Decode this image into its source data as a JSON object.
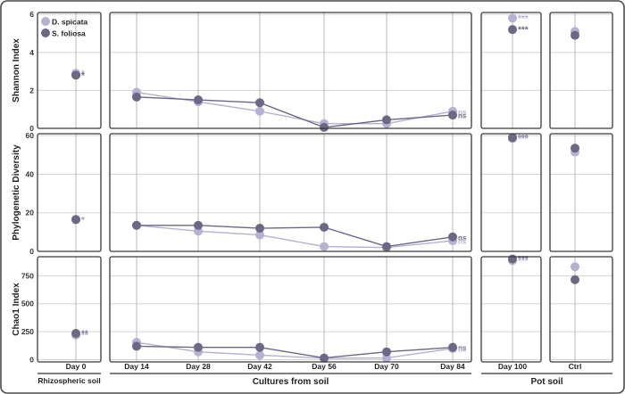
{
  "chart_data": {
    "type": "line",
    "legend": {
      "placement": "top-left",
      "entries": [
        "D. spicata",
        "S. foliosa"
      ]
    },
    "colors": {
      "D. spicata": "#b6b0d2",
      "S. foliosa": "#6e6685",
      "frame": "#3a3a3a",
      "grid": "#d3d3d3",
      "vline": "#b9b9b9"
    },
    "series": [
      {
        "name": "D. spicata"
      },
      {
        "name": "S. foliosa"
      }
    ],
    "groups": [
      {
        "name": "Rhizospheric soil",
        "categories": [
          "Day 0"
        ]
      },
      {
        "name": "Cultures from soil",
        "categories": [
          "Day 14",
          "Day 28",
          "Day 42",
          "Day 56",
          "Day 70",
          "Day 84"
        ]
      },
      {
        "name": "Pot soil",
        "categories": [
          "Day 100",
          "Ctrl"
        ]
      }
    ],
    "rows": [
      {
        "ylabel": "Shannon Index",
        "ylim": [
          0,
          6.1
        ],
        "yticks": [
          0,
          2,
          4,
          6
        ],
        "panels": [
          {
            "values": {
              "D. spicata": [
                2.9
              ],
              "S. foliosa": [
                2.8
              ]
            },
            "annotations": [
              {
                "text": "*",
                "series": "D. spicata"
              },
              {
                "text": "*",
                "series": "S. foliosa"
              }
            ]
          },
          {
            "values": {
              "D. spicata": [
                1.9,
                1.4,
                0.9,
                0.25,
                0.25,
                0.9
              ],
              "S. foliosa": [
                1.65,
                1.5,
                1.35,
                0.05,
                0.45,
                0.7
              ]
            },
            "annotations": [
              {
                "text": "ns",
                "series": "D. spicata"
              },
              {
                "text": "ns",
                "series": "S. foliosa"
              }
            ]
          },
          {
            "values": {
              "D. spicata": [
                5.8
              ],
              "S. foliosa": [
                5.2
              ]
            },
            "annotations": [
              {
                "text": "***",
                "series": "D. spicata"
              },
              {
                "text": "***",
                "series": "S. foliosa"
              }
            ]
          },
          {
            "values": {
              "D. spicata": [
                5.1
              ],
              "S. foliosa": [
                4.9
              ]
            },
            "annotations": []
          }
        ]
      },
      {
        "ylabel": "Phylogenetic Diversity",
        "ylim": [
          0,
          61
        ],
        "yticks": [
          0,
          20,
          40,
          60
        ],
        "panels": [
          {
            "values": {
              "D. spicata": [
                16.5
              ],
              "S. foliosa": [
                16.5
              ]
            },
            "annotations": [
              {
                "text": "*",
                "series": "S. foliosa"
              },
              {
                "text": "*",
                "series": "D. spicata"
              }
            ]
          },
          {
            "values": {
              "D. spicata": [
                13.5,
                10.5,
                8.5,
                2.5,
                2,
                5.5
              ],
              "S. foliosa": [
                13.5,
                13.5,
                12,
                12.5,
                2.5,
                7.5
              ]
            },
            "annotations": [
              {
                "text": "ns",
                "series": "S. foliosa"
              },
              {
                "text": "ns",
                "series": "D. spicata"
              }
            ]
          },
          {
            "values": {
              "D. spicata": [
                58.5
              ],
              "S. foliosa": [
                59
              ]
            },
            "annotations": [
              {
                "text": "***",
                "series": "S. foliosa"
              },
              {
                "text": "***",
                "series": "D. spicata"
              }
            ]
          },
          {
            "values": {
              "D. spicata": [
                51.5
              ],
              "S. foliosa": [
                53.5
              ]
            },
            "annotations": []
          }
        ]
      },
      {
        "ylabel": "Chao1 Index",
        "ylim": [
          -20,
          920
        ],
        "yticks": [
          0,
          250,
          500,
          750
        ],
        "panels": [
          {
            "values": {
              "D. spicata": [
                220
              ],
              "S. foliosa": [
                235
              ]
            },
            "annotations": [
              {
                "text": "**",
                "series": "S. foliosa"
              },
              {
                "text": "**",
                "series": "D. spicata"
              }
            ]
          },
          {
            "values": {
              "D. spicata": [
                155,
                70,
                40,
                12,
                15,
                100
              ],
              "S. foliosa": [
                120,
                110,
                110,
                15,
                70,
                110
              ]
            },
            "annotations": [
              {
                "text": "ns",
                "series": "S. foliosa"
              },
              {
                "text": "ns",
                "series": "D. spicata"
              }
            ]
          },
          {
            "values": {
              "D. spicata": [
                885
              ],
              "S. foliosa": [
                900
              ]
            },
            "annotations": [
              {
                "text": "***",
                "series": "S. foliosa"
              },
              {
                "text": "***",
                "series": "D. spicata"
              }
            ]
          },
          {
            "values": {
              "D. spicata": [
                830
              ],
              "S. foliosa": [
                715
              ]
            },
            "annotations": []
          }
        ]
      }
    ],
    "grid": true
  }
}
